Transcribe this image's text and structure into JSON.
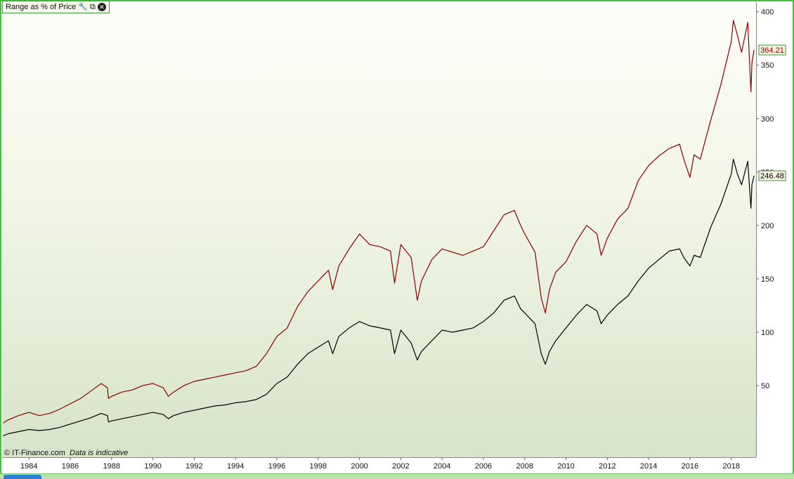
{
  "window": {
    "panel_title": "Range as % of Price",
    "icons": [
      "wrench-icon",
      "restore-window-icon",
      "close-icon"
    ],
    "copyright": "© IT-Finance.com",
    "disclaimer": "Data is indicative"
  },
  "chart_data": {
    "type": "line",
    "title": "Range as % of Price",
    "xlabel": "",
    "ylabel": "",
    "xlim": [
      1982.7,
      2019.2
    ],
    "ylim": [
      -17,
      409
    ],
    "y_ticks": [
      50,
      100,
      150,
      200,
      250,
      300,
      350,
      400
    ],
    "x_ticks": [
      "1984",
      "1986",
      "1988",
      "1990",
      "1992",
      "1994",
      "1996",
      "1998",
      "2000",
      "2002",
      "2004",
      "2006",
      "2008",
      "2010",
      "2012",
      "2014",
      "2016",
      "2018"
    ],
    "grid": false,
    "legend": "none",
    "series": [
      {
        "color": "#8b0000",
        "last_value": "364.21",
        "x": [
          1982.75,
          1983.0,
          1983.5,
          1984.0,
          1984.5,
          1985.0,
          1985.5,
          1986.0,
          1986.5,
          1987.0,
          1987.5,
          1987.8,
          1987.85,
          1988.0,
          1988.5,
          1989.0,
          1989.5,
          1990.0,
          1990.5,
          1990.75,
          1991.0,
          1991.5,
          1992.0,
          1992.5,
          1993.0,
          1993.5,
          1994.0,
          1994.5,
          1995.0,
          1995.5,
          1996.0,
          1996.5,
          1997.0,
          1997.5,
          1998.0,
          1998.5,
          1998.7,
          1999.0,
          1999.5,
          2000.0,
          2000.5,
          2001.0,
          2001.5,
          2001.7,
          2002.0,
          2002.5,
          2002.8,
          2003.0,
          2003.5,
          2004.0,
          2004.5,
          2005.0,
          2005.5,
          2006.0,
          2006.5,
          2007.0,
          2007.5,
          2007.8,
          2008.0,
          2008.5,
          2008.8,
          2009.0,
          2009.2,
          2009.5,
          2010.0,
          2010.5,
          2011.0,
          2011.5,
          2011.7,
          2012.0,
          2012.5,
          2013.0,
          2013.5,
          2014.0,
          2014.5,
          2015.0,
          2015.5,
          2015.7,
          2016.0,
          2016.2,
          2016.5,
          2017.0,
          2017.5,
          2018.0,
          2018.1,
          2018.3,
          2018.5,
          2018.8,
          2018.95,
          2019.0,
          2019.1
        ],
        "y": [
          15,
          18,
          22,
          25,
          22,
          24,
          28,
          33,
          38,
          45,
          52,
          48,
          38,
          40,
          44,
          46,
          50,
          52,
          48,
          40,
          44,
          50,
          54,
          56,
          58,
          60,
          62,
          64,
          68,
          80,
          96,
          104,
          124,
          138,
          148,
          158,
          140,
          162,
          178,
          192,
          182,
          180,
          176,
          146,
          182,
          170,
          130,
          148,
          168,
          178,
          175,
          172,
          176,
          180,
          195,
          210,
          214,
          200,
          192,
          175,
          132,
          118,
          140,
          156,
          166,
          185,
          200,
          192,
          172,
          188,
          206,
          216,
          242,
          256,
          265,
          272,
          276,
          262,
          245,
          266,
          262,
          298,
          332,
          372,
          392,
          378,
          362,
          390,
          325,
          352,
          364.21
        ]
      },
      {
        "color": "#000000",
        "last_value": "246.48",
        "x": [
          1982.75,
          1983.0,
          1983.5,
          1984.0,
          1984.5,
          1985.0,
          1985.5,
          1986.0,
          1986.5,
          1987.0,
          1987.5,
          1987.8,
          1987.85,
          1988.0,
          1988.5,
          1989.0,
          1989.5,
          1990.0,
          1990.5,
          1990.75,
          1991.0,
          1991.5,
          1992.0,
          1992.5,
          1993.0,
          1993.5,
          1994.0,
          1994.5,
          1995.0,
          1995.5,
          1996.0,
          1996.5,
          1997.0,
          1997.5,
          1998.0,
          1998.5,
          1998.7,
          1999.0,
          1999.5,
          2000.0,
          2000.5,
          2001.0,
          2001.5,
          2001.7,
          2002.0,
          2002.5,
          2002.8,
          2003.0,
          2003.5,
          2004.0,
          2004.5,
          2005.0,
          2005.5,
          2006.0,
          2006.5,
          2007.0,
          2007.5,
          2007.8,
          2008.0,
          2008.5,
          2008.8,
          2009.0,
          2009.2,
          2009.5,
          2010.0,
          2010.5,
          2011.0,
          2011.5,
          2011.7,
          2012.0,
          2012.5,
          2013.0,
          2013.5,
          2014.0,
          2014.5,
          2015.0,
          2015.5,
          2015.7,
          2016.0,
          2016.2,
          2016.5,
          2017.0,
          2017.5,
          2018.0,
          2018.1,
          2018.3,
          2018.5,
          2018.8,
          2018.95,
          2019.0,
          2019.1
        ],
        "y": [
          3,
          5,
          7,
          9,
          8,
          9,
          11,
          14,
          17,
          20,
          24,
          22,
          16,
          17,
          19,
          21,
          23,
          25,
          23,
          19,
          22,
          25,
          27,
          29,
          31,
          32,
          34,
          35,
          37,
          42,
          52,
          58,
          70,
          80,
          86,
          92,
          80,
          96,
          104,
          110,
          106,
          104,
          102,
          80,
          102,
          90,
          74,
          82,
          92,
          102,
          100,
          102,
          104,
          110,
          118,
          130,
          134,
          122,
          118,
          108,
          80,
          70,
          82,
          92,
          104,
          116,
          126,
          120,
          108,
          116,
          126,
          134,
          148,
          160,
          168,
          176,
          178,
          170,
          162,
          172,
          170,
          198,
          220,
          248,
          262,
          248,
          238,
          260,
          216,
          238,
          246.48
        ]
      }
    ]
  }
}
